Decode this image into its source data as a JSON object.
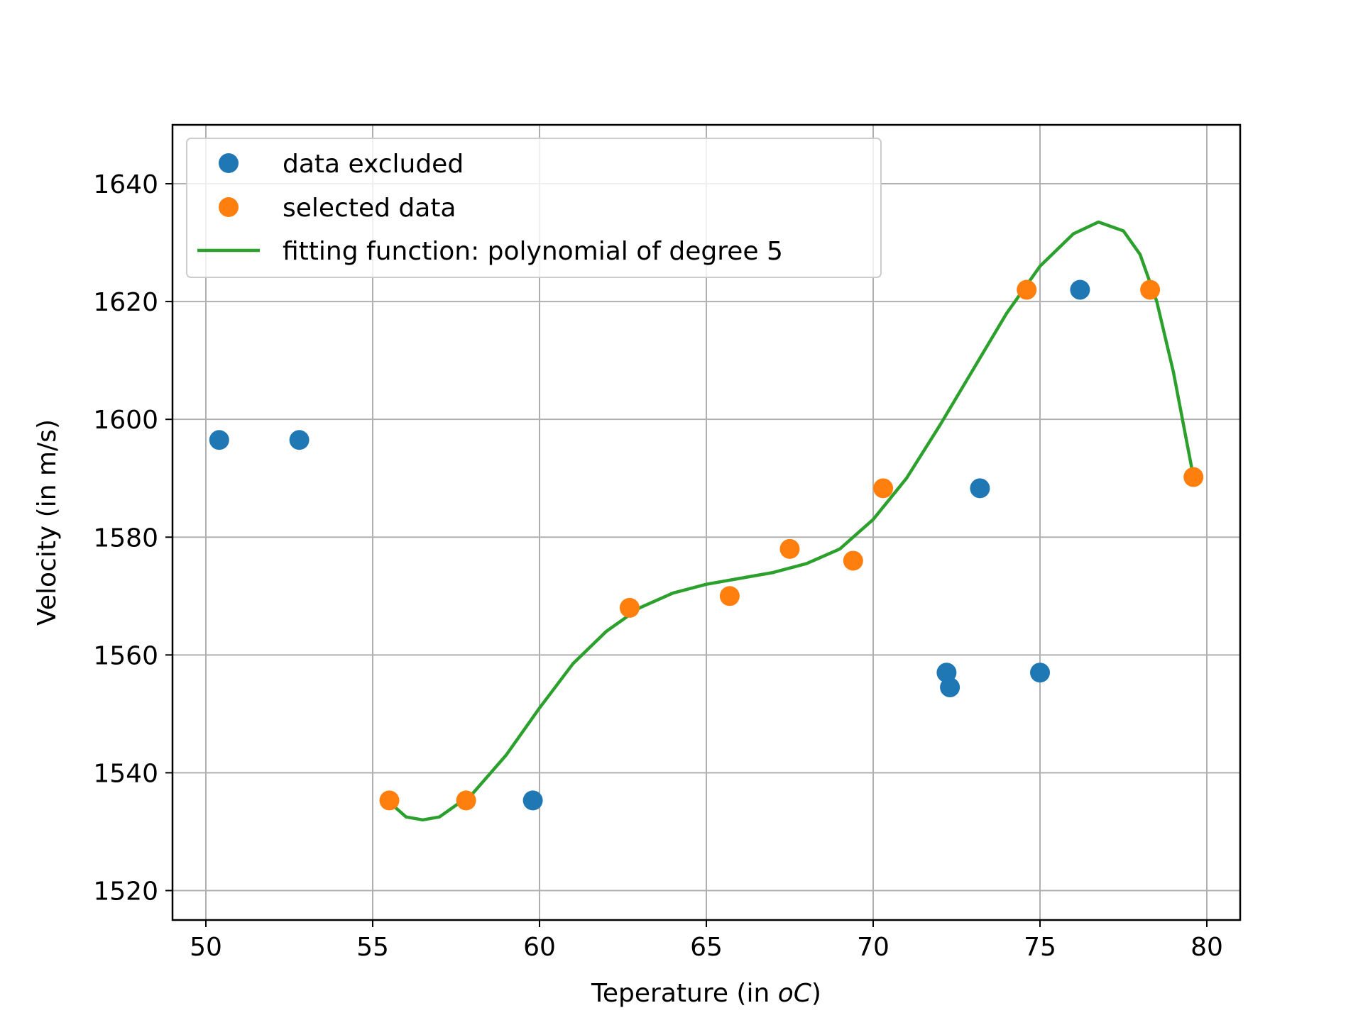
{
  "chart_data": {
    "type": "scatter",
    "xlabel": "Teperature (in ",
    "xlabel_unit_italic": "oC",
    "xlabel_suffix": ")",
    "ylabel": "Velocity (in m/s)",
    "xlim": [
      49,
      81
    ],
    "ylim": [
      1515,
      1650
    ],
    "xticks": [
      50,
      55,
      60,
      65,
      70,
      75,
      80
    ],
    "yticks": [
      1520,
      1540,
      1560,
      1580,
      1600,
      1620,
      1640
    ],
    "grid": true,
    "legend_position": "upper-left",
    "series": [
      {
        "name": "data excluded",
        "kind": "scatter",
        "color": "#1f77b4",
        "points": [
          [
            50.4,
            1596.5
          ],
          [
            52.8,
            1596.5
          ],
          [
            59.8,
            1535.3
          ],
          [
            72.2,
            1557.0
          ],
          [
            72.3,
            1554.5
          ],
          [
            73.2,
            1588.3
          ],
          [
            75.0,
            1557.0
          ],
          [
            76.2,
            1622.0
          ]
        ]
      },
      {
        "name": "selected data",
        "kind": "scatter",
        "color": "#ff7f0e",
        "points": [
          [
            55.5,
            1535.3
          ],
          [
            57.8,
            1535.3
          ],
          [
            62.7,
            1568.0
          ],
          [
            65.7,
            1570.0
          ],
          [
            67.5,
            1578.0
          ],
          [
            69.4,
            1576.0
          ],
          [
            70.3,
            1588.3
          ],
          [
            74.6,
            1622.0
          ],
          [
            78.3,
            1622.0
          ],
          [
            79.6,
            1590.2
          ]
        ]
      },
      {
        "name": "fitting function: polynomial of degree 5",
        "kind": "line",
        "color": "#2ca02c",
        "points": [
          [
            55.5,
            1535.0
          ],
          [
            56.0,
            1532.5
          ],
          [
            56.5,
            1532.0
          ],
          [
            57.0,
            1532.5
          ],
          [
            58.0,
            1536.5
          ],
          [
            59.0,
            1543.0
          ],
          [
            60.0,
            1551.0
          ],
          [
            61.0,
            1558.5
          ],
          [
            62.0,
            1564.0
          ],
          [
            63.0,
            1568.0
          ],
          [
            64.0,
            1570.5
          ],
          [
            65.0,
            1572.0
          ],
          [
            66.0,
            1573.0
          ],
          [
            67.0,
            1574.0
          ],
          [
            68.0,
            1575.5
          ],
          [
            69.0,
            1578.0
          ],
          [
            70.0,
            1583.0
          ],
          [
            71.0,
            1590.0
          ],
          [
            72.0,
            1599.0
          ],
          [
            73.0,
            1608.5
          ],
          [
            74.0,
            1618.0
          ],
          [
            75.0,
            1626.0
          ],
          [
            76.0,
            1631.5
          ],
          [
            76.75,
            1633.5
          ],
          [
            77.5,
            1632.0
          ],
          [
            78.0,
            1628.0
          ],
          [
            78.5,
            1620.0
          ],
          [
            79.0,
            1608.0
          ],
          [
            79.6,
            1590.2
          ]
        ]
      }
    ]
  }
}
